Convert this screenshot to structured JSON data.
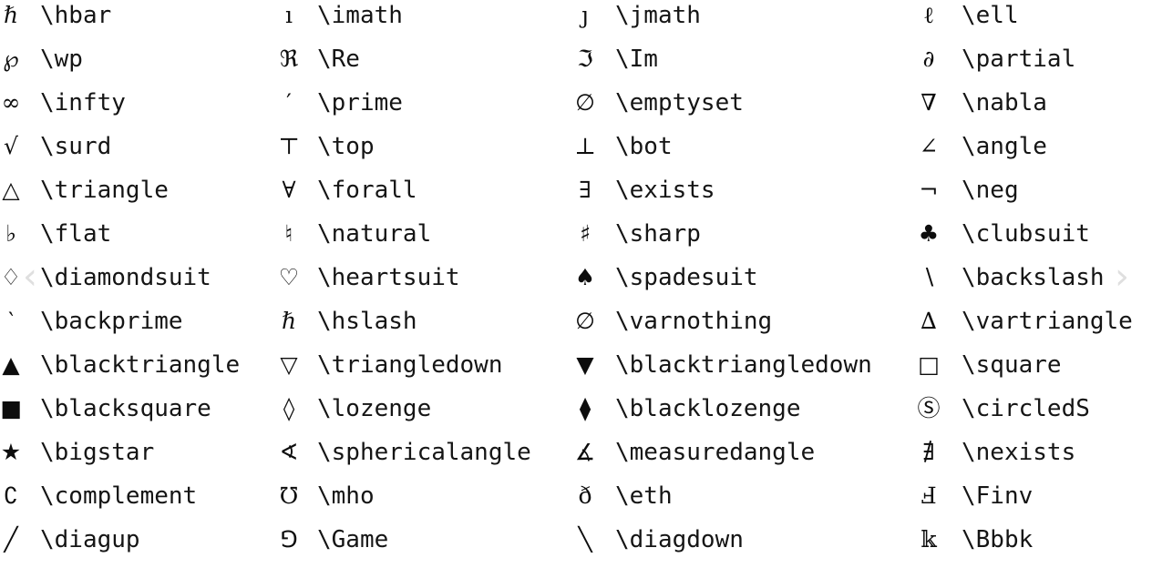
{
  "nav": {
    "prev_glyph": "‹",
    "next_glyph": "›"
  },
  "rows": [
    [
      {
        "symbol": "ℏ",
        "command": "\\hbar"
      },
      {
        "symbol": "ı",
        "command": "\\imath"
      },
      {
        "symbol": "ȷ",
        "command": "\\jmath"
      },
      {
        "symbol": "ℓ",
        "command": "\\ell"
      }
    ],
    [
      {
        "symbol": "℘",
        "command": "\\wp"
      },
      {
        "symbol": "ℜ",
        "command": "\\Re"
      },
      {
        "symbol": "ℑ",
        "command": "\\Im"
      },
      {
        "symbol": "∂",
        "command": "\\partial"
      }
    ],
    [
      {
        "symbol": "∞",
        "command": "\\infty"
      },
      {
        "symbol": "′",
        "command": "\\prime"
      },
      {
        "symbol": "∅",
        "command": "\\emptyset"
      },
      {
        "symbol": "∇",
        "command": "\\nabla"
      }
    ],
    [
      {
        "symbol": "√",
        "command": "\\surd"
      },
      {
        "symbol": "⊤",
        "command": "\\top"
      },
      {
        "symbol": "⊥",
        "command": "\\bot"
      },
      {
        "symbol": "∠",
        "command": "\\angle"
      }
    ],
    [
      {
        "symbol": "△",
        "command": "\\triangle"
      },
      {
        "symbol": "∀",
        "command": "\\forall"
      },
      {
        "symbol": "∃",
        "command": "\\exists"
      },
      {
        "symbol": "¬",
        "command": "\\neg"
      }
    ],
    [
      {
        "symbol": "♭",
        "command": "\\flat"
      },
      {
        "symbol": "♮",
        "command": "\\natural"
      },
      {
        "symbol": "♯",
        "command": "\\sharp"
      },
      {
        "symbol": "♣",
        "command": "\\clubsuit"
      }
    ],
    [
      {
        "symbol": "♢",
        "command": "\\diamondsuit"
      },
      {
        "symbol": "♡",
        "command": "\\heartsuit"
      },
      {
        "symbol": "♠",
        "command": "\\spadesuit"
      },
      {
        "symbol": "∖",
        "command": "\\backslash"
      }
    ],
    [
      {
        "symbol": "‵",
        "command": "\\backprime"
      },
      {
        "symbol": "ℏ",
        "command": "\\hslash"
      },
      {
        "symbol": "∅",
        "command": "\\varnothing"
      },
      {
        "symbol": "∆",
        "command": "\\vartriangle"
      }
    ],
    [
      {
        "symbol": "▲",
        "command": "\\blacktriangle"
      },
      {
        "symbol": "▽",
        "command": "\\triangledown"
      },
      {
        "symbol": "▼",
        "command": "\\blacktriangledown"
      },
      {
        "symbol": "□",
        "command": "\\square"
      }
    ],
    [
      {
        "symbol": "■",
        "command": "\\blacksquare"
      },
      {
        "symbol": "◊",
        "command": "\\lozenge"
      },
      {
        "symbol": "⧫",
        "command": "\\blacklozenge"
      },
      {
        "symbol": "Ⓢ",
        "command": "\\circledS"
      }
    ],
    [
      {
        "symbol": "★",
        "command": "\\bigstar"
      },
      {
        "symbol": "∢",
        "command": "\\sphericalangle"
      },
      {
        "symbol": "∡",
        "command": "\\measuredangle"
      },
      {
        "symbol": "∄",
        "command": "\\nexists"
      }
    ],
    [
      {
        "symbol": "∁",
        "command": "\\complement"
      },
      {
        "symbol": "℧",
        "command": "\\mho"
      },
      {
        "symbol": "ð",
        "command": "\\eth"
      },
      {
        "symbol": "Ⅎ",
        "command": "\\Finv"
      }
    ],
    [
      {
        "symbol": "╱",
        "command": "\\diagup"
      },
      {
        "symbol": "⅁",
        "command": "\\Game"
      },
      {
        "symbol": "╲",
        "command": "\\diagdown"
      },
      {
        "symbol": "𝕜",
        "command": "\\Bbbk"
      }
    ]
  ]
}
